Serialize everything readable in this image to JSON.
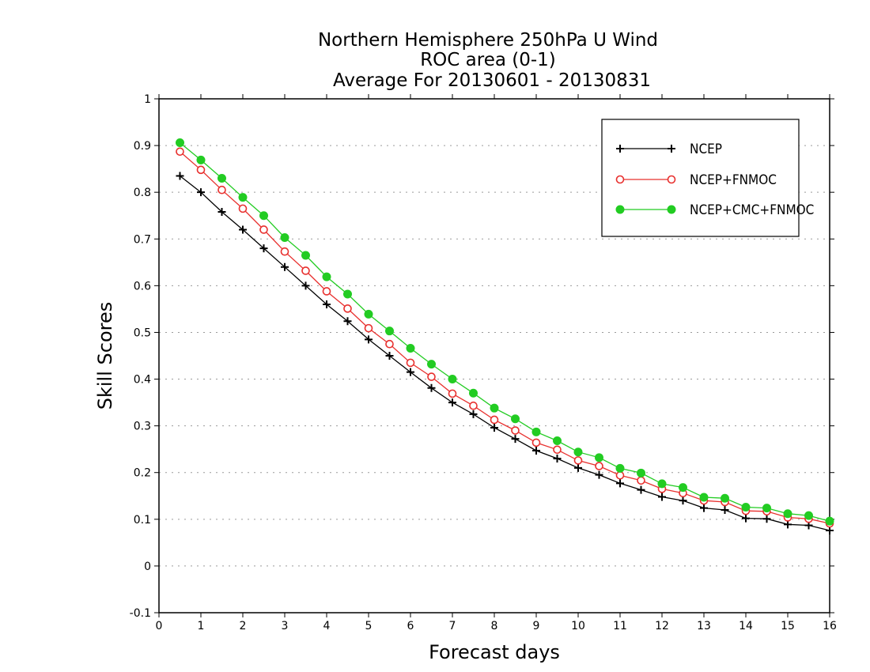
{
  "chart_data": {
    "type": "line",
    "title": [
      "Northern Hemisphere 250hPa U Wind",
      "ROC area (0-1)",
      "Average For 20130601 - 20130831"
    ],
    "xlabel": "Forecast days",
    "ylabel": "Skill Scores",
    "xlim": [
      0,
      16
    ],
    "ylim": [
      -0.1,
      1
    ],
    "xticks": [
      0,
      1,
      2,
      3,
      4,
      5,
      6,
      7,
      8,
      9,
      10,
      11,
      12,
      13,
      14,
      15,
      16
    ],
    "yticks": [
      -0.1,
      0,
      0.1,
      0.2,
      0.3,
      0.4,
      0.5,
      0.6,
      0.7,
      0.8,
      0.9,
      1
    ],
    "ytick_labels": [
      "-0.1",
      "0",
      "0.1",
      "0.2",
      "0.3",
      "0.4",
      "0.5",
      "0.6",
      "0.7",
      "0.8",
      "0.9",
      "1"
    ],
    "grid": "horizontal dotted",
    "legend_position": "top-right",
    "x": [
      0.5,
      1,
      1.5,
      2,
      2.5,
      3,
      3.5,
      4,
      4.5,
      5,
      5.5,
      6,
      6.5,
      7,
      7.5,
      8,
      8.5,
      9,
      9.5,
      10,
      10.5,
      11,
      11.5,
      12,
      12.5,
      13,
      13.5,
      14,
      14.5,
      15,
      15.5,
      16
    ],
    "series": [
      {
        "name": "NCEP",
        "color": "#000000",
        "marker": "plus",
        "values": [
          0.835,
          0.8,
          0.758,
          0.72,
          0.68,
          0.64,
          0.6,
          0.56,
          0.524,
          0.485,
          0.45,
          0.415,
          0.381,
          0.35,
          0.325,
          0.296,
          0.272,
          0.247,
          0.23,
          0.21,
          0.195,
          0.177,
          0.163,
          0.148,
          0.14,
          0.124,
          0.12,
          0.102,
          0.101,
          0.089,
          0.087,
          0.076
        ]
      },
      {
        "name": "NCEP+FNMOC",
        "color": "#e8302e",
        "marker": "open-circle",
        "values": [
          0.887,
          0.848,
          0.805,
          0.765,
          0.72,
          0.673,
          0.632,
          0.588,
          0.551,
          0.509,
          0.475,
          0.435,
          0.405,
          0.369,
          0.343,
          0.313,
          0.29,
          0.264,
          0.249,
          0.226,
          0.214,
          0.194,
          0.183,
          0.165,
          0.156,
          0.14,
          0.137,
          0.118,
          0.117,
          0.104,
          0.101,
          0.091
        ]
      },
      {
        "name": "NCEP+CMC+FNMOC",
        "color": "#22cc22",
        "marker": "filled-circle",
        "values": [
          0.906,
          0.869,
          0.83,
          0.789,
          0.75,
          0.703,
          0.665,
          0.619,
          0.582,
          0.539,
          0.503,
          0.466,
          0.432,
          0.4,
          0.37,
          0.338,
          0.315,
          0.287,
          0.268,
          0.244,
          0.232,
          0.209,
          0.199,
          0.176,
          0.168,
          0.147,
          0.145,
          0.126,
          0.124,
          0.112,
          0.108,
          0.096
        ]
      }
    ]
  }
}
